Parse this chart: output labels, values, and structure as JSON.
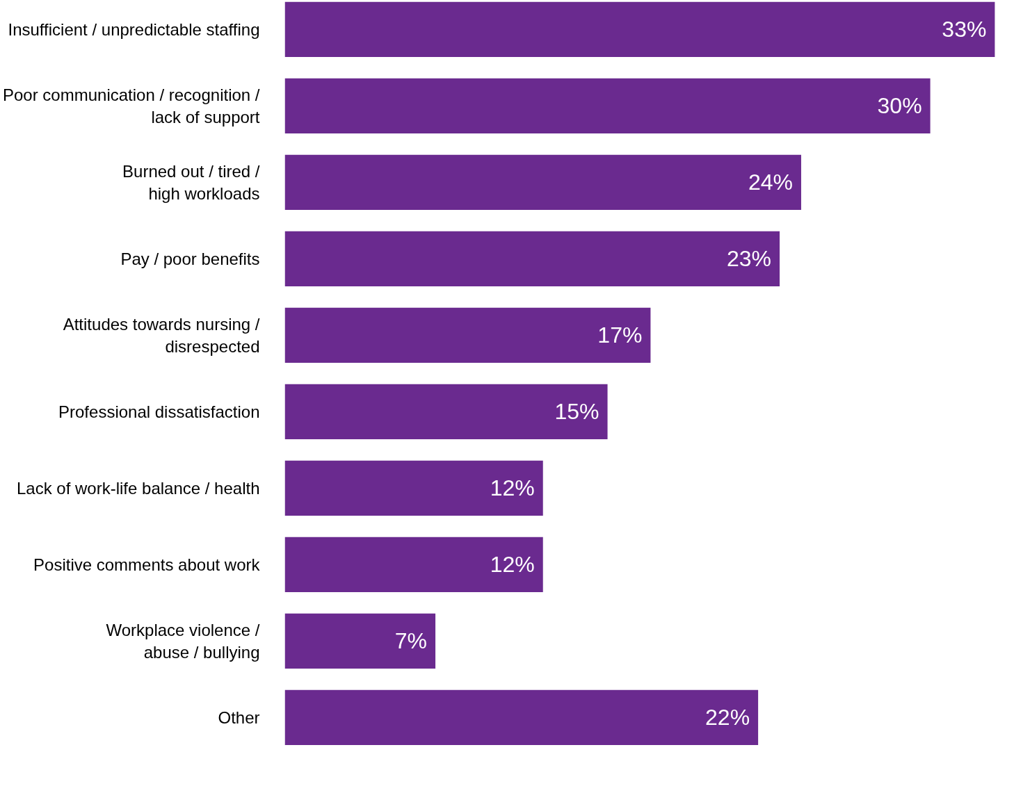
{
  "chart_data": {
    "type": "bar",
    "orientation": "horizontal",
    "categories": [
      "Insufficient / unpredictable staffing",
      "Poor communication / recognition /\nlack of support",
      "Burned out / tired /\nhigh workloads",
      "Pay / poor benefits",
      "Attitudes towards nursing /\ndisrespected",
      "Professional dissatisfaction",
      "Lack of work-life balance / health",
      "Positive comments about work",
      "Workplace violence /\nabuse / bullying",
      "Other"
    ],
    "values": [
      33,
      30,
      24,
      23,
      17,
      15,
      12,
      12,
      7,
      22
    ],
    "value_labels": [
      "33%",
      "30%",
      "24%",
      "23%",
      "17%",
      "15%",
      "12%",
      "12%",
      "7%",
      "22%"
    ],
    "color": "#6a2a8f"
  }
}
